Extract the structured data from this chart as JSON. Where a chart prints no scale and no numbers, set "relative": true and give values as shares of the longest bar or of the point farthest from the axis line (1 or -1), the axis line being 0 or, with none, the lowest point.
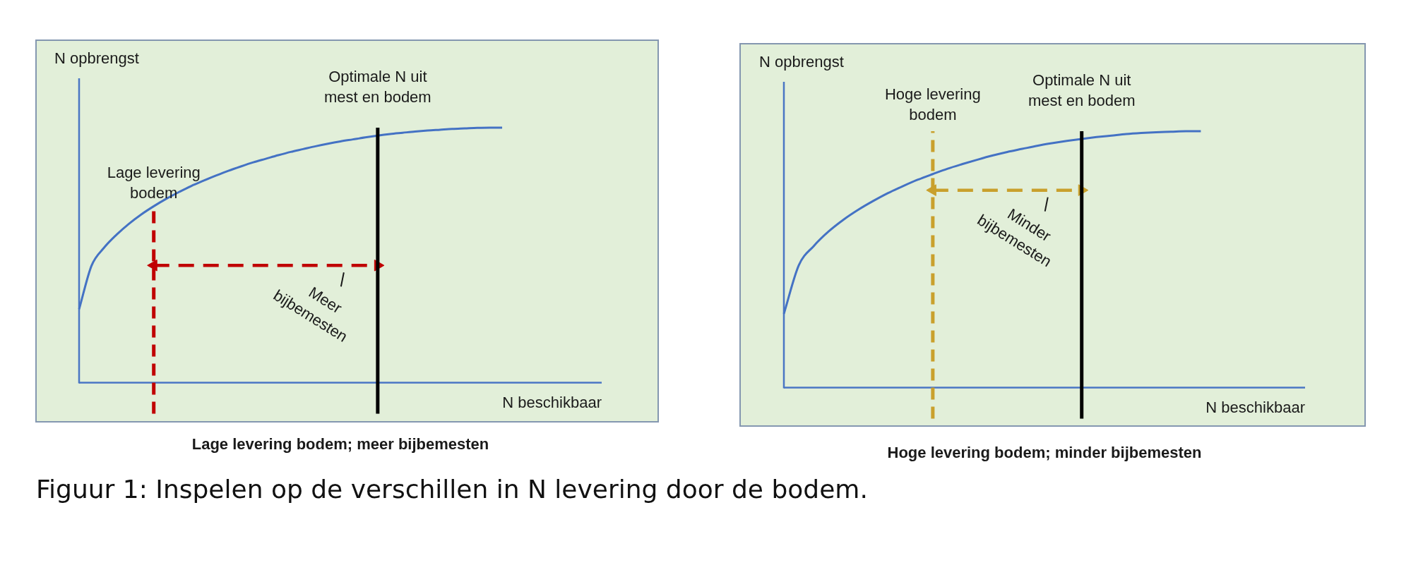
{
  "chart_data": [
    {
      "type": "line",
      "title": "Lage levering bodem; meer bijbemesten",
      "xlabel": "N beschikbaar",
      "ylabel": "N opbrengst",
      "relative": true,
      "marker": "none",
      "tick_labels": false,
      "categories": [
        null,
        null,
        null,
        null,
        null,
        null,
        null,
        null,
        null,
        null,
        null,
        null,
        null,
        null,
        null,
        null,
        null,
        null,
        null,
        null,
        null,
        null,
        null,
        null,
        null,
        null,
        null,
        null,
        null,
        null,
        null,
        null,
        null,
        null,
        null,
        null,
        null,
        null,
        null,
        null,
        null,
        null,
        null
      ],
      "series": [
        {
          "color": "#4472c4",
          "values": [
            0.288,
            0.459,
            0.529,
            0.58,
            0.623,
            0.66,
            0.692,
            0.721,
            0.747,
            0.771,
            0.792,
            0.812,
            0.831,
            0.848,
            0.864,
            0.878,
            0.892,
            0.905,
            0.916,
            0.927,
            0.937,
            0.946,
            0.954,
            0.962,
            0.969,
            0.975,
            0.98,
            0.985,
            0.989,
            0.992,
            0.995,
            0.997,
            0.999,
            1,
            1,
            null,
            null,
            null,
            null,
            null,
            null,
            null,
            null
          ]
        },
        {
          "color": "#c00000",
          "line_style": "dashed",
          "marker": "triangle",
          "values": [
            null,
            null,
            null,
            null,
            null,
            null,
            0.46,
            null,
            null,
            null,
            null,
            null,
            null,
            null,
            null,
            null,
            null,
            null,
            null,
            null,
            null,
            null,
            null,
            null,
            0.46,
            null,
            null,
            null,
            null,
            null,
            null,
            null,
            null,
            null,
            null,
            null,
            null,
            null,
            null,
            null,
            null,
            null,
            null
          ]
        }
      ],
      "annotations": [
        {
          "text": "Lage levering bodem",
          "y": 0.68
        },
        "Optimale N uit mest en bodem",
        {
          "text": "Meer bijbemesten",
          "y": 0.46
        },
        "Figuur 1: Inspelen op de verschillen in N levering door de bodem."
      ]
    },
    {
      "type": "line",
      "title": "Hoge levering bodem; minder bijbemesten",
      "xlabel": "N beschikbaar",
      "ylabel": "N opbrengst",
      "relative": true,
      "marker": "none",
      "tick_labels": false,
      "categories": [
        null,
        null,
        null,
        null,
        null,
        null,
        null,
        null,
        null,
        null,
        null,
        null,
        null,
        null,
        null,
        null,
        null,
        null,
        null,
        null,
        null,
        null,
        null,
        null,
        null,
        null,
        null,
        null,
        null,
        null,
        null,
        null,
        null,
        null,
        null,
        null
      ],
      "series": [
        {
          "color": "#4472c4",
          "values": [
            0.288,
            0.477,
            0.552,
            0.609,
            0.655,
            0.694,
            0.728,
            0.759,
            0.786,
            0.811,
            0.833,
            0.854,
            0.872,
            0.889,
            0.905,
            0.919,
            0.931,
            0.943,
            0.953,
            0.962,
            0.97,
            0.977,
            0.983,
            0.989,
            0.993,
            0.996,
            0.998,
            1,
            1,
            null,
            null,
            null,
            null,
            null,
            null,
            null
          ]
        },
        {
          "color": "#c9a02c",
          "line_style": "dashed",
          "marker": "triangle",
          "values": [
            null,
            null,
            null,
            null,
            null,
            null,
            null,
            null,
            null,
            null,
            0.77,
            null,
            null,
            null,
            null,
            null,
            null,
            null,
            null,
            null,
            0.77,
            null,
            null,
            null,
            null,
            null,
            null,
            null,
            null,
            null,
            null,
            null,
            null,
            null,
            null,
            null
          ]
        }
      ],
      "annotations": [
        "Hoge levering bodem",
        "Optimale N uit mest en bodem",
        {
          "text": "Minder bijbemesten",
          "y": 0.77
        }
      ]
    }
  ]
}
